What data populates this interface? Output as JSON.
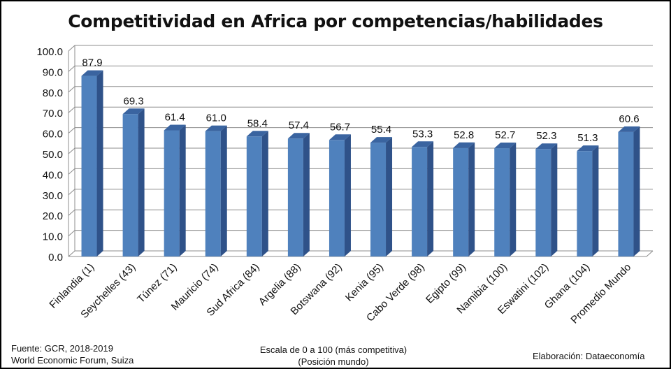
{
  "chart_data": {
    "type": "bar",
    "title": "Competitividad en Africa por competencias/habilidades",
    "categories": [
      "Finlandia (1)",
      "Seychelles (43)",
      "Túnez (71)",
      "Mauricio (74)",
      "Sud Africa (84)",
      "Argelia (88)",
      "Botswana (92)",
      "Kenia (95)",
      "Cabo Verde (98)",
      "Egipto (99)",
      "Namibia (100)",
      "Eswatini (102)",
      "Ghana (104)",
      "Promedio Mundo"
    ],
    "values": [
      87.9,
      69.3,
      61.4,
      61.0,
      58.4,
      57.4,
      56.7,
      55.4,
      53.3,
      52.8,
      52.7,
      52.3,
      51.3,
      60.6
    ],
    "ylim": [
      0,
      100
    ],
    "yticks": [
      "0.0",
      "10.0",
      "20.0",
      "30.0",
      "40.0",
      "50.0",
      "60.0",
      "70.0",
      "80.0",
      "90.0",
      "100.0"
    ],
    "data_labels": [
      "87.9",
      "69.3",
      "61.4",
      "61.0",
      "58.4",
      "57.4",
      "56.7",
      "55.4",
      "53.3",
      "52.8",
      "52.7",
      "52.3",
      "51.3",
      "60.6"
    ],
    "grid": true,
    "bar_style": "3d",
    "colors": {
      "bar_front": "#4f81bd",
      "bar_side": "#2f5289",
      "bar_top": "#3a64a0",
      "grid": "#8c8c8c"
    }
  },
  "footer": {
    "source_line1": "Fuente:  GCR, 2018-2019",
    "source_line2": "World Economic Forum, Suiza",
    "note_line1": "Escala de 0 a 100 (más competitiva)",
    "note_line2": "(Posición mundo)",
    "credit": "Elaboración: Dataeconomía"
  }
}
